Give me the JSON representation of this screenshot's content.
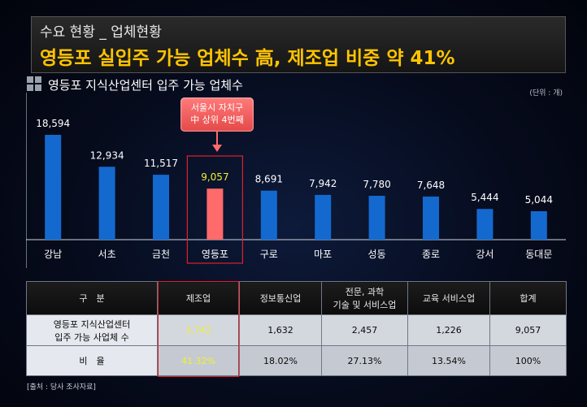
{
  "header": {
    "kicker": "수요 현황 _ 업체현황",
    "headline": "영등포 실입주 가능 업체수 高, 제조업 비중 약 41%"
  },
  "section": {
    "title": "영등포 지식산업센터 입주 가능 업체수",
    "unit": "(단위 : 개)"
  },
  "callout": {
    "line1": "서울시 자치구",
    "line2": "中 상위 4번째"
  },
  "chart_data": {
    "type": "bar",
    "categories": [
      "강남",
      "서초",
      "금천",
      "영등포",
      "구로",
      "마포",
      "성동",
      "종로",
      "강서",
      "동대문"
    ],
    "values": [
      18594,
      12934,
      11517,
      9057,
      8691,
      7942,
      7780,
      7648,
      5444,
      5044
    ],
    "value_labels": [
      "18,594",
      "12,934",
      "11,517",
      "9,057",
      "8,691",
      "7,942",
      "7,780",
      "7,648",
      "5,444",
      "5,044"
    ],
    "highlight_index": 3,
    "colors": {
      "bar": "#1469cf",
      "highlight": "#ff6a6a",
      "highlight_label": "#f0f030"
    }
  },
  "table": {
    "headers": [
      "구　분",
      "제조업",
      "정보통신업",
      "전문, 과학",
      "기술 및 서비스업",
      "교육 서비스업",
      "합계"
    ],
    "rows": [
      {
        "label1": "영등포 지식산업센터",
        "label2": "입주 가능 사업체 수",
        "values": [
          "3,742",
          "1,632",
          "2,457",
          "1,226",
          "9,057"
        ]
      },
      {
        "label1": "비　율",
        "values": [
          "41.32%",
          "18.02%",
          "27.13%",
          "13.54%",
          "100%"
        ]
      }
    ]
  },
  "source": "[출처 : 당사 조사자료]"
}
